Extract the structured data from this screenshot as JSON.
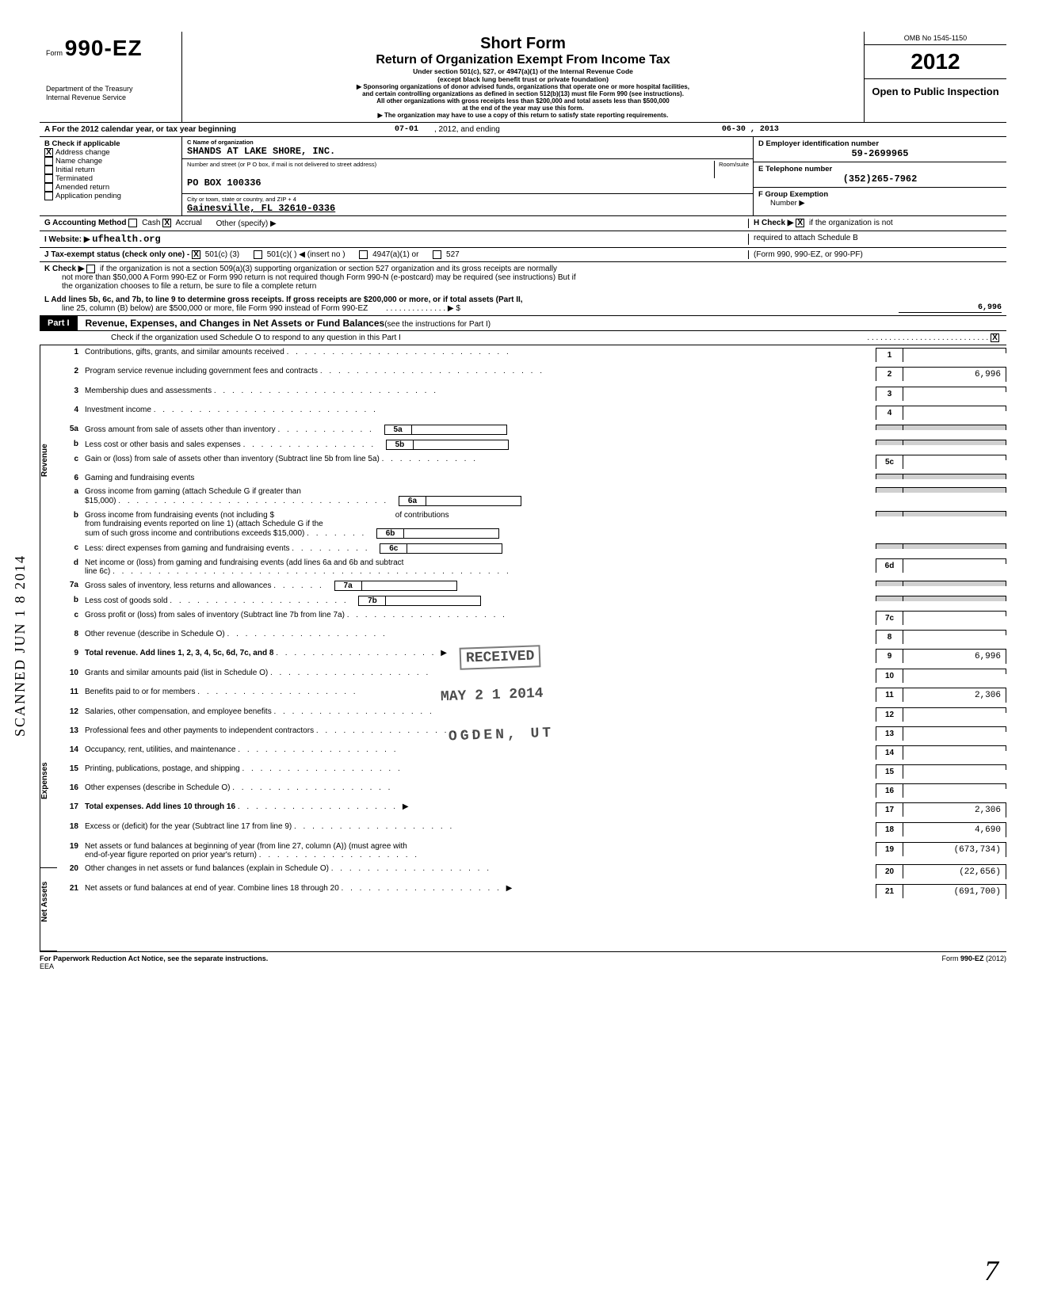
{
  "header": {
    "form_label": "Form",
    "form_number": "990-EZ",
    "dept1": "Department of the Treasury",
    "dept2": "Internal Revenue Service",
    "title_short": "Short Form",
    "title_main": "Return of Organization Exempt From Income Tax",
    "subtitle1": "Under section 501(c), 527, or 4947(a)(1) of the Internal Revenue Code",
    "subtitle2": "(except black lung benefit trust or private foundation)",
    "sponsor1": "▶ Sponsoring organizations of donor advised funds, organizations that operate one or more hospital facilities,",
    "sponsor2": "and certain controlling organizations as defined in section 512(b)(13) must file Form 990 (see instructions).",
    "sponsor3": "All other organizations with gross receipts less than $200,000 and total assets less than $500,000",
    "sponsor4": "at the end of the year may use this form.",
    "sponsor5": "▶ The organization may have to use a copy of this return to satisfy state reporting requirements.",
    "omb": "OMB No 1545-1150",
    "year": "2012",
    "open": "Open to Public Inspection"
  },
  "section_a": {
    "label": "A  For the 2012 calendar year, or tax year beginning",
    "begin": "07-01",
    "mid": ", 2012, and ending",
    "end": "06-30  , 2013"
  },
  "section_b": {
    "header": "B  Check if applicable",
    "items": [
      "Address change",
      "Name change",
      "Initial return",
      "Terminated",
      "Amended return",
      "Application pending"
    ]
  },
  "section_c": {
    "name_label": "C  Name of organization",
    "name": "SHANDS AT LAKE SHORE, INC.",
    "addr_label": "Number and street (or P O  box, if mail is not delivered to street address)",
    "room_label": "Room/suite",
    "addr": "PO BOX 100336",
    "city_label": "City or town, state or country, and ZIP  +  4",
    "city": "Gainesville, FL 32610-0336"
  },
  "section_d": {
    "label": "D  Employer identification number",
    "value": "59-2699965"
  },
  "section_e": {
    "label": "E  Telephone number",
    "value": "(352)265-7962"
  },
  "section_f": {
    "label": "F  Group Exemption",
    "label2": "Number  ▶"
  },
  "line_g": {
    "label": "G    Accounting Method",
    "cash": "Cash",
    "accrual": "Accrual",
    "other": "Other (specify) ▶"
  },
  "line_h": {
    "label": "H  Check ▶",
    "text": "if the organization is not",
    "text2": "required to attach Schedule B",
    "text3": "(Form 990, 990-EZ, or 990-PF)"
  },
  "line_i": {
    "label": "I      Website: ▶",
    "value": "ufhealth.org"
  },
  "line_j": {
    "label": "J   Tax-exempt status (check only one) -",
    "opt1": "501(c) (3)",
    "opt2": "501(c)(",
    "opt3": ")  ◀ (insert no )",
    "opt4": "4947(a)(1) or",
    "opt5": "527"
  },
  "line_k": {
    "label": "K  Check ▶",
    "text1": "if the organization is not a section 509(a)(3) supporting organization or section 527 organization and its gross receipts are normally",
    "text2": "not more than $50,000  A Form 990-EZ or Form 990 return is not required though Form 990-N (e-postcard) may be required (see instructions)  But if",
    "text3": "the organization chooses to file a return, be sure to file a complete return"
  },
  "line_l": {
    "text1": "L   Add lines 5b, 6c, and 7b, to line 9 to determine gross receipts. If gross receipts are $200,000 or more, or if total assets (Part II,",
    "text2": "line 25, column (B) below) are $500,000 or more, file Form 990 instead of Form 990-EZ",
    "dots": ". . . . . . . . . . . . . . ▶ $",
    "value": "6,996"
  },
  "part1": {
    "label": "Part I",
    "title": "Revenue, Expenses, and Changes in Net Assets or Fund Balances",
    "title_suffix": "(see the instructions for Part I)",
    "check_line": "Check if the organization used Schedule O to respond to any question in this Part I"
  },
  "lines": {
    "1": {
      "text": "Contributions, gifts, grants, and similar amounts received",
      "val": ""
    },
    "2": {
      "text": "Program service revenue including government fees and contracts",
      "val": "6,996"
    },
    "3": {
      "text": "Membership dues and assessments",
      "val": ""
    },
    "4": {
      "text": "Investment income",
      "val": ""
    },
    "5a": {
      "text": "Gross amount from sale of assets other than inventory"
    },
    "5b": {
      "text": "Less  cost or other basis and sales expenses"
    },
    "5c": {
      "text": "Gain or (loss) from sale of assets other than inventory (Subtract line 5b from line 5a)",
      "val": ""
    },
    "6": {
      "text": "Gaming and fundraising events"
    },
    "6a": {
      "text": "Gross income from gaming (attach Schedule G if greater than",
      "text2": "$15,000)"
    },
    "6b": {
      "text": "Gross income from fundraising events (not including $",
      "text2": "of contributions",
      "text3": "from fundraising events reported on line 1) (attach Schedule G if the",
      "text4": "sum of such gross income and contributions exceeds $15,000)"
    },
    "6c": {
      "text": "Less: direct expenses from gaming and fundraising events"
    },
    "6d": {
      "text": "Net income or (loss) from gaming and fundraising events (add lines 6a and 6b and subtract",
      "text2": "line 6c)",
      "val": ""
    },
    "7a": {
      "text": "Gross sales of inventory, less returns and allowances"
    },
    "7b": {
      "text": "Less  cost of goods sold"
    },
    "7c": {
      "text": "Gross profit or (loss) from sales of inventory (Subtract line 7b from line 7a)",
      "val": ""
    },
    "8": {
      "text": "Other revenue (describe in Schedule O)",
      "val": ""
    },
    "9": {
      "text": "Total revenue. Add lines 1, 2, 3, 4, 5c, 6d, 7c, and 8",
      "val": "6,996"
    },
    "10": {
      "text": "Grants and similar amounts paid (list in Schedule O)",
      "val": ""
    },
    "11": {
      "text": "Benefits paid to or for members",
      "val": "2,306"
    },
    "12": {
      "text": "Salaries, other compensation, and employee benefits",
      "val": ""
    },
    "13": {
      "text": "Professional fees and other payments to independent contractors",
      "val": ""
    },
    "14": {
      "text": "Occupancy, rent, utilities, and maintenance",
      "val": ""
    },
    "15": {
      "text": "Printing, publications, postage, and shipping",
      "val": ""
    },
    "16": {
      "text": "Other expenses (describe in Schedule O)",
      "val": ""
    },
    "17": {
      "text": "Total expenses. Add lines 10 through 16",
      "val": "2,306"
    },
    "18": {
      "text": "Excess or (deficit) for the year (Subtract line 17 from line 9)",
      "val": "4,690"
    },
    "19": {
      "text": "Net assets or fund balances at beginning of year (from line 27, column (A)) (must agree with",
      "text2": "end-of-year figure reported on prior year's return)",
      "val": "(673,734)"
    },
    "20": {
      "text": "Other changes in net assets or fund balances (explain in Schedule O)",
      "val": "(22,656)"
    },
    "21": {
      "text": "Net assets or fund balances at end of year. Combine lines 18 through 20",
      "val": "(691,700)"
    }
  },
  "side_labels": {
    "revenue": "Revenue",
    "expenses": "Expenses",
    "netassets": "Net Assets"
  },
  "stamps": {
    "received": "RECEIVED",
    "date": "MAY 2 1 2014",
    "ogden": "OGDEN, UT"
  },
  "footer": {
    "left": "For Paperwork Reduction Act Notice, see the separate instructions.",
    "eea": "EEA",
    "right": "Form 990-EZ (2012)"
  },
  "scanned": "SCANNED JUN 1 8 2014"
}
